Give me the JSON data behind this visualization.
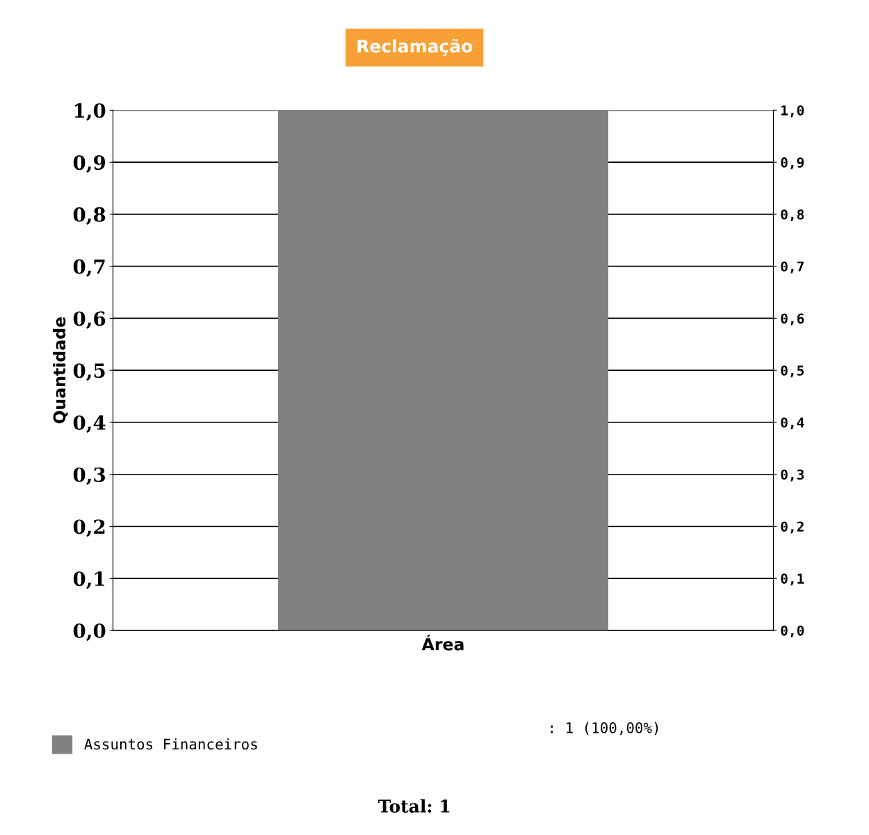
{
  "chart_data": {
    "type": "bar",
    "title": "Reclamação",
    "xlabel": "Área",
    "ylabel": "Quantidade",
    "categories": [
      null
    ],
    "series": [
      {
        "name": "Assuntos Financeiros",
        "color": "#808080",
        "values": [
          1
        ]
      }
    ],
    "ylim": [
      0,
      1
    ],
    "yticks": [
      {
        "value": 0,
        "label": "0,0"
      },
      {
        "value": 0.1,
        "label": "0,1"
      },
      {
        "value": 0.2,
        "label": "0,2"
      },
      {
        "value": 0.3,
        "label": "0,3"
      },
      {
        "value": 0.4,
        "label": "0,4"
      },
      {
        "value": 0.5,
        "label": "0,5"
      },
      {
        "value": 0.6,
        "label": "0,6"
      },
      {
        "value": 0.7,
        "label": "0,7"
      },
      {
        "value": 0.8,
        "label": "0,8"
      },
      {
        "value": 0.9,
        "label": "0,9"
      },
      {
        "value": 1,
        "label": "1,0"
      }
    ],
    "y2lim": [
      0,
      1
    ],
    "y2ticks": [
      {
        "value": 0,
        "label": "0,0"
      },
      {
        "value": 0.1,
        "label": "0,1"
      },
      {
        "value": 0.2,
        "label": "0,2"
      },
      {
        "value": 0.3,
        "label": "0,3"
      },
      {
        "value": 0.4,
        "label": "0,4"
      },
      {
        "value": 0.5,
        "label": "0,5"
      },
      {
        "value": 0.6,
        "label": "0,6"
      },
      {
        "value": 0.7,
        "label": "0,7"
      },
      {
        "value": 0.8,
        "label": "0,8"
      },
      {
        "value": 0.9,
        "label": "0,9"
      },
      {
        "value": 1,
        "label": "1,0"
      }
    ],
    "grid": "y",
    "legend": "bottom",
    "annotations": [
      ": 1 (100,00%)",
      "Total: 1"
    ]
  }
}
